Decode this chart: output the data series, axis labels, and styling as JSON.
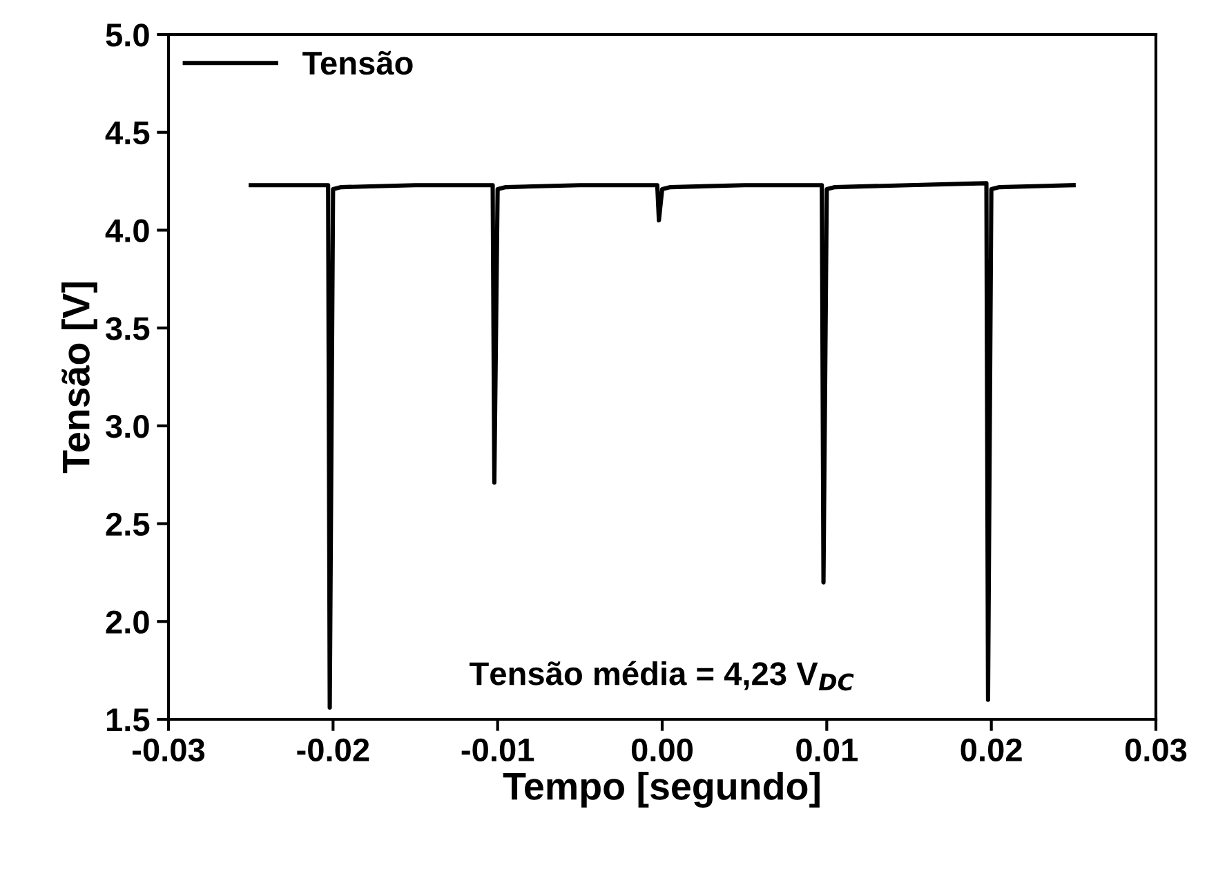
{
  "chart_data": {
    "type": "line",
    "xlabel": "Tempo [segundo]",
    "ylabel": "Tensão [V]",
    "x": [
      -0.025,
      -0.0225,
      -0.0203,
      -0.0202,
      -0.02,
      -0.0195,
      -0.015,
      -0.0103,
      -0.0102,
      -0.01,
      -0.0095,
      -0.005,
      -0.0003,
      -0.0002,
      0.0,
      0.0005,
      0.005,
      0.0097,
      0.0098,
      0.01,
      0.0105,
      0.015,
      0.0197,
      0.0198,
      0.02,
      0.0205,
      0.025
    ],
    "series": [
      {
        "name": "Tensão",
        "color": "#000000",
        "values": [
          4.23,
          4.23,
          4.23,
          1.56,
          4.21,
          4.22,
          4.23,
          4.23,
          2.71,
          4.21,
          4.22,
          4.23,
          4.23,
          4.05,
          4.21,
          4.22,
          4.23,
          4.23,
          2.2,
          4.21,
          4.22,
          4.23,
          4.24,
          1.6,
          4.21,
          4.22,
          4.23
        ]
      }
    ],
    "xlim": [
      -0.03,
      0.03
    ],
    "ylim": [
      1.5,
      5.0
    ],
    "xticks": [
      -0.03,
      -0.02,
      -0.01,
      {
        "value": 0.0,
        "label": "0.00"
      },
      0.01,
      0.02,
      0.03
    ],
    "yticks": [
      1.5,
      {
        "value": 2,
        "label": "2.0"
      },
      2.5,
      {
        "value": 3,
        "label": "3.0"
      },
      3.5,
      {
        "value": 4,
        "label": "4.0"
      },
      4.5,
      {
        "value": 5,
        "label": "5.0"
      }
    ],
    "annotations": [
      "Tensão média = 4,23 V$_{DC}$"
    ],
    "legend": "top left",
    "grid": false,
    "marker": "none",
    "line_style": "solid"
  }
}
